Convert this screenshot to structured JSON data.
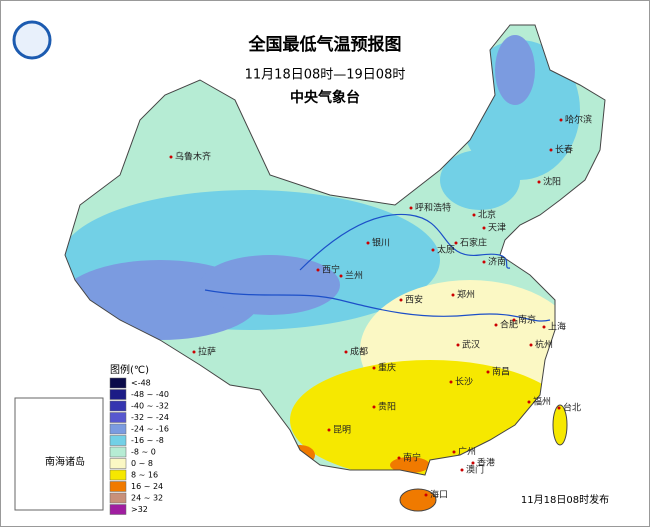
{
  "header": {
    "title": "全国最低气温预报图",
    "subtitle": "11月18日08时—19日08时",
    "source": "中央气象台"
  },
  "legend": {
    "title": "图例(℃)",
    "items": [
      {
        "label": "<-48",
        "color": "#0b0b4a"
      },
      {
        "label": "-48 ~ -40",
        "color": "#1c1c86"
      },
      {
        "label": "-40 ~ -32",
        "color": "#3434b0"
      },
      {
        "label": "-32 ~ -24",
        "color": "#5757cf"
      },
      {
        "label": "-24 ~ -16",
        "color": "#7b9be0"
      },
      {
        "label": "-16 ~ -8",
        "color": "#72d0e6"
      },
      {
        "label": "-8 ~ 0",
        "color": "#b6ecd4"
      },
      {
        "label": "0 ~ 8",
        "color": "#fbf8c4"
      },
      {
        "label": "8 ~ 16",
        "color": "#f6e800"
      },
      {
        "label": "16 ~ 24",
        "color": "#f07a00"
      },
      {
        "label": "24 ~ 32",
        "color": "#c8907a"
      },
      {
        "label": ">32",
        "color": "#a01ea0"
      }
    ]
  },
  "cities": [
    "乌鲁木齐",
    "哈尔滨",
    "长春",
    "沈阳",
    "呼和浩特",
    "北京",
    "天津",
    "银川",
    "太原",
    "石家庄",
    "济南",
    "西宁",
    "兰州",
    "郑州",
    "西安",
    "合肥",
    "南京",
    "上海",
    "拉萨",
    "成都",
    "重庆",
    "武汉",
    "杭州",
    "长沙",
    "南昌",
    "贵阳",
    "福州",
    "台北",
    "昆明",
    "南宁",
    "广州",
    "香港",
    "澳门",
    "海口"
  ],
  "inset": {
    "label": "南海诸岛"
  },
  "footer": {
    "issued": "11月18日08时发布"
  }
}
